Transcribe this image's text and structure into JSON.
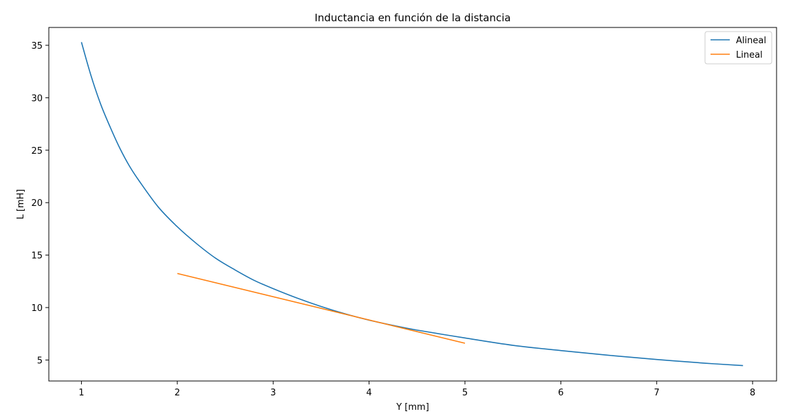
{
  "chart_data": {
    "type": "line",
    "title": "Inductancia en función de la distancia",
    "xlabel": "Y [mm]",
    "ylabel": "L [mH]",
    "xlim": [
      0.66,
      8.25
    ],
    "ylim": [
      3.0,
      36.7
    ],
    "xticks": [
      1,
      2,
      3,
      4,
      5,
      6,
      7,
      8
    ],
    "yticks": [
      5,
      10,
      15,
      20,
      25,
      30,
      35
    ],
    "grid": false,
    "legend_position": "top-right",
    "series": [
      {
        "name": "Alineal",
        "color": "#1f77b4",
        "x": [
          1.0,
          1.1,
          1.2,
          1.3,
          1.4,
          1.5,
          1.6,
          1.8,
          2.0,
          2.2,
          2.4,
          2.6,
          2.8,
          3.0,
          3.25,
          3.5,
          3.75,
          4.0,
          4.25,
          4.5,
          5.0,
          5.5,
          6.0,
          6.5,
          7.0,
          7.5,
          7.9
        ],
        "y": [
          35.3,
          32.1,
          29.4,
          27.2,
          25.2,
          23.5,
          22.1,
          19.6,
          17.7,
          16.1,
          14.7,
          13.6,
          12.6,
          11.8,
          10.9,
          10.1,
          9.4,
          8.8,
          8.3,
          7.85,
          7.1,
          6.4,
          5.9,
          5.45,
          5.05,
          4.7,
          4.47
        ]
      },
      {
        "name": "Lineal",
        "color": "#ff7f0e",
        "x": [
          2.0,
          5.0
        ],
        "y": [
          13.25,
          6.6
        ]
      }
    ]
  }
}
